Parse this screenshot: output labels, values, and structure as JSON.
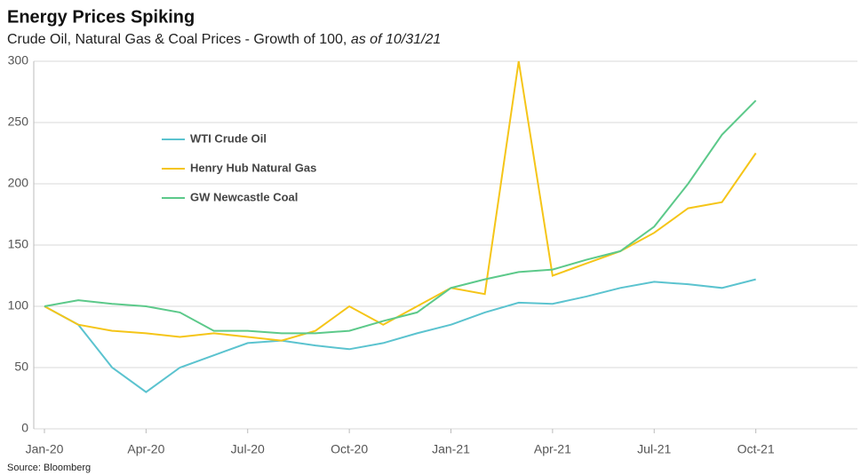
{
  "chart_data": {
    "type": "line",
    "title": "Energy Prices Spiking",
    "subtitle": "Crude Oil, Natural Gas & Coal Prices - Growth of 100,",
    "subtitle_note": "as of 10/31/21",
    "source": "Source: Bloomberg",
    "x": [
      "2020-01",
      "2020-02",
      "2020-03",
      "2020-04",
      "2020-05",
      "2020-06",
      "2020-07",
      "2020-08",
      "2020-09",
      "2020-10",
      "2020-11",
      "2020-12",
      "2021-01",
      "2021-02",
      "2021-03",
      "2021-04",
      "2021-05",
      "2021-06",
      "2021-07",
      "2021-08",
      "2021-09",
      "2021-10"
    ],
    "series": [
      {
        "name": "WTI Crude Oil",
        "color": "#5bc3cf",
        "values": [
          100,
          85,
          50,
          30,
          50,
          60,
          70,
          72,
          68,
          65,
          70,
          78,
          85,
          95,
          103,
          102,
          108,
          115,
          120,
          118,
          115,
          122
        ]
      },
      {
        "name": "Henry Hub Natural Gas",
        "color": "#f5c518",
        "values": [
          100,
          85,
          80,
          78,
          75,
          78,
          75,
          72,
          80,
          100,
          85,
          100,
          115,
          110,
          300,
          125,
          135,
          145,
          160,
          180,
          185,
          225
        ]
      },
      {
        "name": "GW Newcastle Coal",
        "color": "#5cc98a",
        "values": [
          100,
          105,
          102,
          100,
          95,
          80,
          80,
          78,
          78,
          80,
          88,
          95,
          115,
          122,
          128,
          130,
          138,
          145,
          165,
          200,
          240,
          268
        ]
      }
    ],
    "xlim": [
      "2020-01",
      "2022-01"
    ],
    "xticks": [
      {
        "value": "2020-01",
        "label": "Jan-20"
      },
      {
        "value": "2020-04",
        "label": "Apr-20"
      },
      {
        "value": "2020-07",
        "label": "Jul-20"
      },
      {
        "value": "2020-10",
        "label": "Oct-20"
      },
      {
        "value": "2021-01",
        "label": "Jan-21"
      },
      {
        "value": "2021-04",
        "label": "Apr-21"
      },
      {
        "value": "2021-07",
        "label": "Jul-21"
      },
      {
        "value": "2021-10",
        "label": "Oct-21"
      }
    ],
    "ylim": [
      0,
      300
    ],
    "yticks": [
      0,
      50,
      100,
      150,
      200,
      250,
      300
    ],
    "grid": true,
    "legend": "upper left"
  }
}
